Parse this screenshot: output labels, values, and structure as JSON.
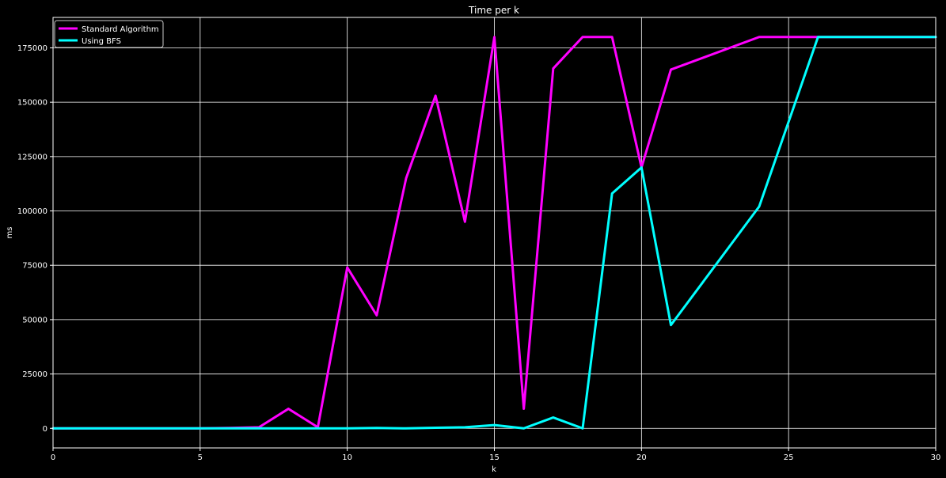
{
  "chart_data": {
    "type": "line",
    "title": "Time per k",
    "xlabel": "k",
    "ylabel": "ms",
    "xlim": [
      0,
      30
    ],
    "ylim": [
      -9000,
      189000
    ],
    "xticks": [
      0,
      5,
      10,
      15,
      20,
      25,
      30
    ],
    "yticks": [
      0,
      25000,
      50000,
      75000,
      100000,
      125000,
      150000,
      175000
    ],
    "grid": true,
    "legend_position": "top-left",
    "background": "#000000",
    "series": [
      {
        "name": "Standard Algorithm",
        "color": "#ff00ff",
        "x": [
          0,
          1,
          2,
          3,
          4,
          5,
          6,
          7,
          8,
          9,
          10,
          11,
          12,
          13,
          14,
          15,
          16,
          17,
          18,
          19,
          20,
          21,
          24,
          25,
          26,
          30
        ],
        "y": [
          0,
          0,
          0,
          0,
          0,
          0,
          200,
          500,
          9000,
          500,
          74000,
          52000,
          115000,
          153000,
          95000,
          180000,
          9000,
          165500,
          180000,
          180000,
          120000,
          165000,
          180000,
          180000,
          180000,
          180000
        ]
      },
      {
        "name": "Using BFS",
        "color": "#00ffff",
        "x": [
          0,
          1,
          2,
          3,
          4,
          5,
          6,
          7,
          8,
          9,
          10,
          11,
          12,
          13,
          14,
          15,
          16,
          17,
          18,
          19,
          20,
          21,
          24,
          26,
          30
        ],
        "y": [
          0,
          0,
          0,
          0,
          0,
          0,
          0,
          0,
          0,
          0,
          0,
          200,
          0,
          300,
          500,
          1500,
          0,
          5000,
          0,
          108000,
          120000,
          47500,
          102000,
          180000,
          180000
        ]
      }
    ]
  }
}
